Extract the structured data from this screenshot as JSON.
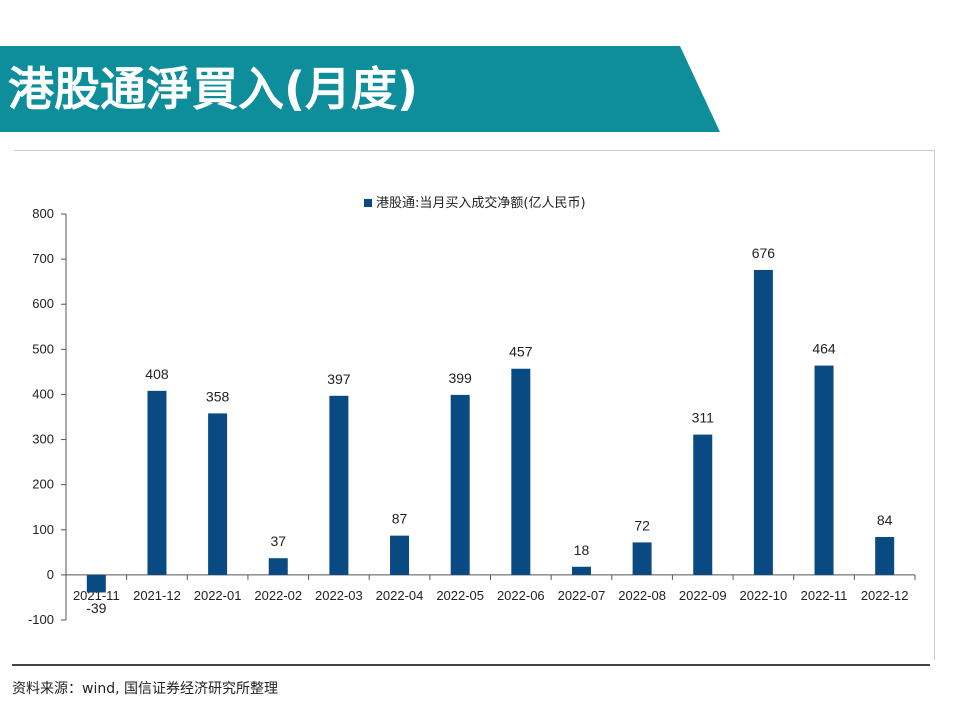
{
  "header": {
    "title": "港股通淨買入(月度)"
  },
  "source": {
    "text": "资料来源：wind, 国信证券经济研究所整理"
  },
  "colors": {
    "banner": "#0e8d9b",
    "bar": "#0a4a82"
  },
  "chart_data": {
    "type": "bar",
    "title": "",
    "xlabel": "",
    "ylabel": "",
    "legend": {
      "label": "港股通:当月买入成交净额(亿人民币)",
      "position": "top"
    },
    "categories": [
      "2021-11",
      "2021-12",
      "2022-01",
      "2022-02",
      "2022-03",
      "2022-04",
      "2022-05",
      "2022-06",
      "2022-07",
      "2022-08",
      "2022-09",
      "2022-10",
      "2022-11",
      "2022-12"
    ],
    "series": [
      {
        "name": "港股通:当月买入成交净额(亿人民币)",
        "values": [
          -39,
          408,
          358,
          37,
          397,
          87,
          399,
          457,
          18,
          72,
          311,
          676,
          464,
          84
        ]
      }
    ],
    "ylim": [
      -100,
      800
    ],
    "yticks": [
      -100,
      0,
      100,
      200,
      300,
      400,
      500,
      600,
      700,
      800
    ],
    "grid": false
  }
}
